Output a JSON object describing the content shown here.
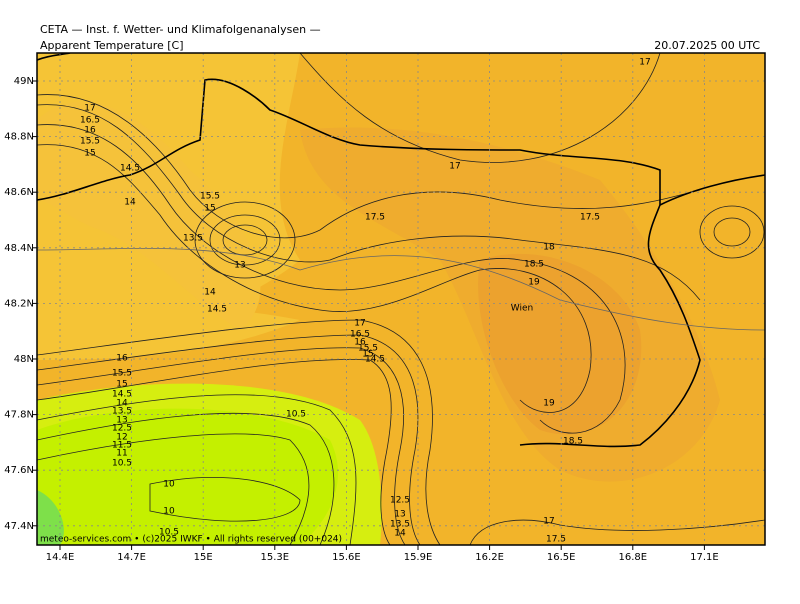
{
  "map": {
    "header": {
      "title": "CETA — Inst. f. Wetter- und Klimafolgenanalysen —",
      "field": "Apparent Temperature [C]",
      "time": "20.07.2025 00 UTC"
    },
    "footer": "meteo-services.com • (c)2025 IWKF • All rights reserved (00+024)",
    "xticks": [
      "14.4E",
      "14.7E",
      "15E",
      "15.3E",
      "15.6E",
      "15.9E",
      "16.2E",
      "16.5E",
      "16.8E",
      "17.1E"
    ],
    "yticks": [
      "49N",
      "48.8N",
      "48.6N",
      "48.4N",
      "48.2N",
      "48N",
      "47.8N",
      "47.6N",
      "47.4N"
    ],
    "places": [
      "Wien"
    ],
    "contour_labels": [
      "17",
      "17",
      "16.5",
      "16",
      "15.5",
      "15",
      "14.5",
      "14",
      "15.5",
      "15",
      "13.5",
      "13",
      "14",
      "14.5",
      "17",
      "17.5",
      "17.5",
      "18",
      "18.5",
      "19",
      "17",
      "16.5",
      "16",
      "15.5",
      "15",
      "14.5",
      "16",
      "15.5",
      "15",
      "14.5",
      "14",
      "13.5",
      "13",
      "12.5",
      "12",
      "11.5",
      "11",
      "10.5",
      "10.5",
      "19",
      "18.5",
      "10",
      "10",
      "12.5",
      "13",
      "13.5",
      "14",
      "10.5",
      "17",
      "17.5"
    ]
  }
}
